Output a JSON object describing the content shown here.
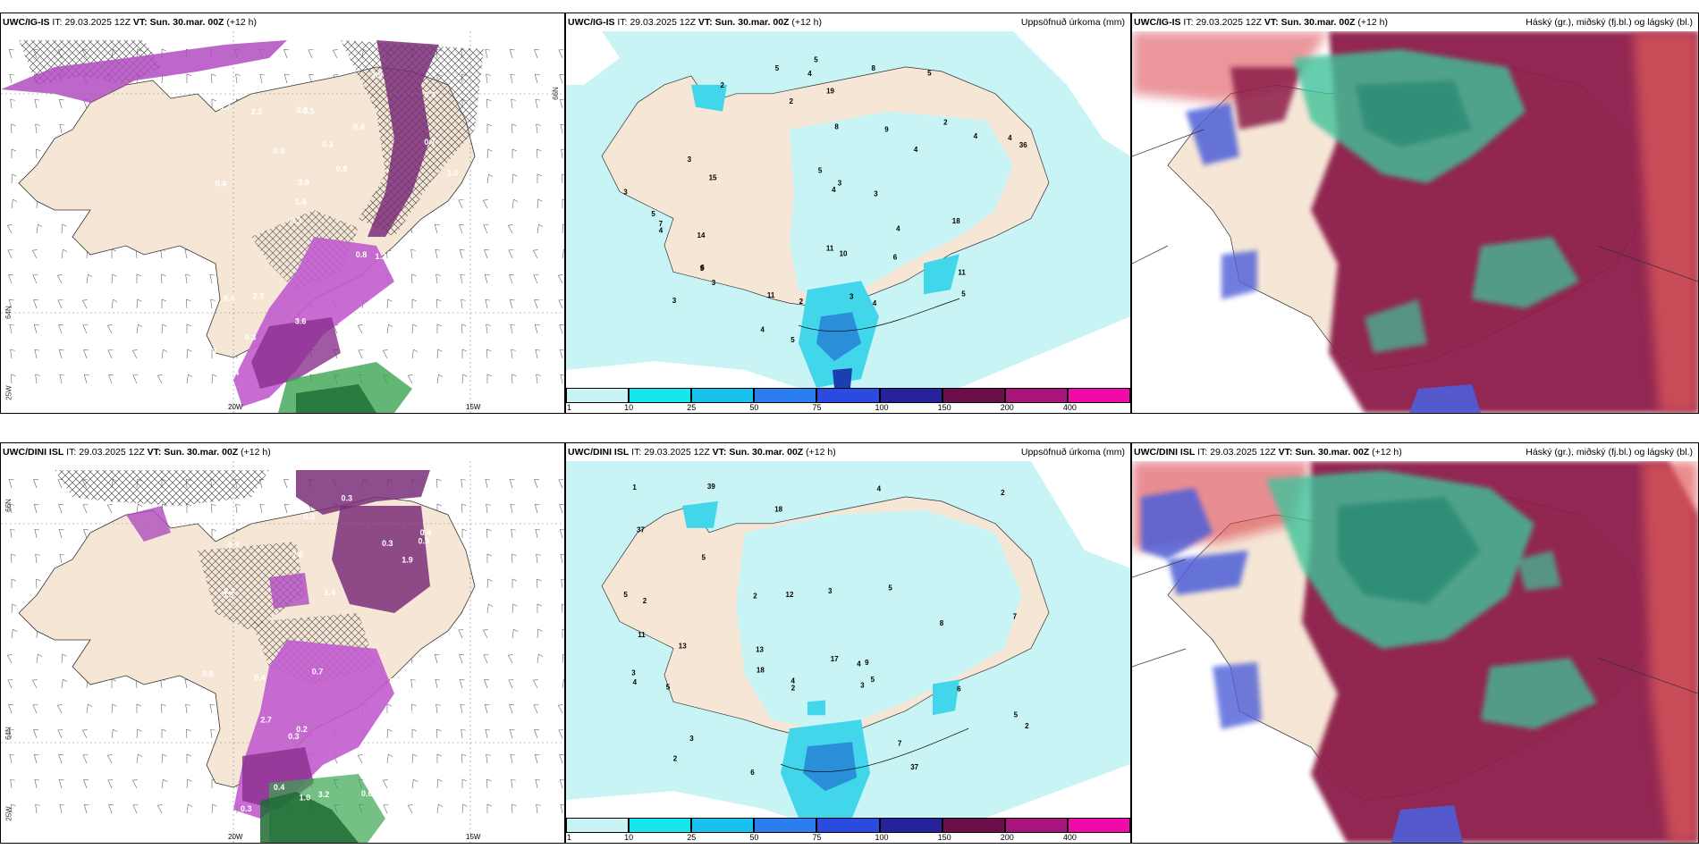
{
  "colors": {
    "land": "#f5e6d6",
    "sea": "#ffffff",
    "precip_light": "#c8f4f6",
    "precip_mid": "#41d6ea",
    "precip_dark": "#2a8ed8",
    "snow_light": "#e6a6e6",
    "snow_dark": "#7b2f78",
    "rain_green": "#3aa550",
    "cloud_high": "#3fc39a",
    "cloud_mid": "#8c1d4a",
    "cloud_low": "#4e5ed8"
  },
  "rows": [
    {
      "model": "UWC/IG-IS",
      "panels": [
        {
          "kind": "snow",
          "header": {
            "source": "UWC/IG-IS",
            "it_label": "IT:",
            "it_value": "29.03.2025 12Z",
            "vt_label": "VT:",
            "vt_value": "Sun. 30.mar. 00Z",
            "lead": "(+12 h)",
            "right": ""
          },
          "lat_labels": [
            "66N",
            "64N",
            "25W"
          ],
          "lon_labels": [
            "20W",
            "15W"
          ],
          "values": [
            "0.4",
            "0.4",
            "0.3",
            "0.3",
            "0.4",
            "0.4",
            "0.3",
            "0.3",
            "0.4",
            "0.3",
            "0.3",
            "0.3",
            "0.5",
            "0.8",
            "1.2",
            "0.7",
            "1.3",
            "1.0",
            "0.8",
            "0.7",
            "1.4",
            "3.6",
            "3.9",
            "2.2",
            "3.5",
            "2.7",
            "1.1",
            "0.8"
          ]
        },
        {
          "kind": "precip",
          "header": {
            "source": "UWC/IG-IS",
            "it_label": "IT:",
            "it_value": "29.03.2025 12Z",
            "vt_label": "VT:",
            "vt_value": "Sun. 30.mar. 00Z",
            "lead": "(+12 h)",
            "right": "Uppsöfnuð úrkoma (mm)"
          },
          "values": [
            "3",
            "5",
            "2",
            "2",
            "10",
            "15",
            "14",
            "6",
            "4",
            "4",
            "5",
            "5",
            "6",
            "4",
            "5",
            "5",
            "5",
            "3",
            "5",
            "4",
            "4",
            "4",
            "2",
            "3",
            "5",
            "11",
            "7",
            "8",
            "8",
            "4",
            "3",
            "3",
            "3",
            "11",
            "11",
            "4",
            "4",
            "3",
            "9",
            "18",
            "36",
            "19",
            "2"
          ],
          "colorbar": [
            "1",
            "10",
            "25",
            "50",
            "75",
            "100",
            "150",
            "200",
            "400"
          ]
        },
        {
          "kind": "cloud",
          "header": {
            "source": "UWC/IG-IS",
            "it_label": "IT:",
            "it_value": "29.03.2025 12Z",
            "vt_label": "VT:",
            "vt_value": "Sun. 30.mar. 00Z",
            "lead": "(+12 h)",
            "right": "Háský (gr.), miðský (fj.bl.) og lágský (bl.)"
          }
        }
      ]
    },
    {
      "model": "UWC/DINI ISL",
      "panels": [
        {
          "kind": "snow",
          "header": {
            "source": "UWC/DINI ISL",
            "it_label": "IT:",
            "it_value": "29.03.2025 12Z",
            "vt_label": "VT:",
            "vt_value": "Sun. 30.mar. 00Z",
            "lead": "(+12 h)",
            "right": ""
          },
          "lat_labels": [
            "66N",
            "64N",
            "25W"
          ],
          "lon_labels": [
            "20W",
            "15W"
          ],
          "values": [
            "0.3",
            "0.2",
            "0.3",
            "0.3",
            "0.3",
            "0.4",
            "0.3",
            "0.4",
            "0.3",
            "0.3",
            "0.3",
            "0.3",
            "0.3",
            "0.7",
            "0.3",
            "0.6",
            "0.4",
            "0.6",
            "0.8",
            "0.5",
            "1.9",
            "1.4",
            "1.0",
            "1.6",
            "2.7",
            "3.2",
            "2.6"
          ]
        },
        {
          "kind": "precip",
          "header": {
            "source": "UWC/DINI ISL",
            "it_label": "IT:",
            "it_value": "29.03.2025 12Z",
            "vt_label": "VT:",
            "vt_value": "Sun. 30.mar. 00Z",
            "lead": "(+12 h)",
            "right": "Uppsöfnuð úrkoma (mm)"
          },
          "values": [
            "5",
            "2",
            "2",
            "3",
            "13",
            "12",
            "8",
            "9",
            "2",
            "3",
            "3",
            "5",
            "5",
            "4",
            "6",
            "5",
            "5",
            "4",
            "6",
            "5",
            "3",
            "4",
            "2",
            "2",
            "1",
            "4",
            "7",
            "11",
            "13",
            "2",
            "7",
            "18",
            "18",
            "37",
            "17",
            "39",
            "37"
          ],
          "colorbar": [
            "1",
            "10",
            "25",
            "50",
            "75",
            "100",
            "150",
            "200",
            "400"
          ]
        },
        {
          "kind": "cloud",
          "header": {
            "source": "UWC/DINI ISL",
            "it_label": "IT:",
            "it_value": "29.03.2025 12Z",
            "vt_label": "VT:",
            "vt_value": "Sun. 30.mar. 00Z",
            "lead": "(+12 h)",
            "right": "Háský (gr.), miðský (fj.bl.) og lágský (bl.)"
          }
        }
      ]
    }
  ]
}
